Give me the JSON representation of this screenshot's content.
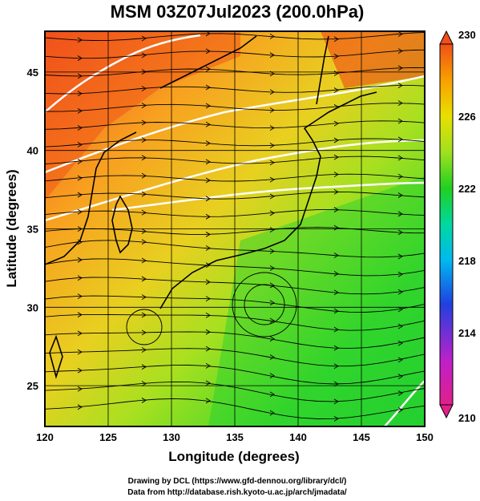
{
  "title": "MSM 03Z07Jul2023 (200.0hPa)",
  "map": {
    "xlabel": "Longitude (degrees)",
    "ylabel": "Latitude  (degrees)",
    "lon_range": [
      120,
      150
    ],
    "lat_range": [
      22.4,
      47.6
    ],
    "lon_ticks": [
      "120",
      "125",
      "130",
      "135",
      "140",
      "145",
      "150"
    ],
    "lat_ticks": [
      "25",
      "30",
      "35",
      "40",
      "45"
    ],
    "field": "temperature (shaded) with streamlines and white contours",
    "shading_summary": "warm (orange/red) in the northwest, cooler (green) in the southeast"
  },
  "colorbar": {
    "min": 210,
    "max": 230,
    "labels": [
      "230",
      "226",
      "222",
      "218",
      "214",
      "210"
    ],
    "colors": [
      "#e0208a",
      "#c020c8",
      "#2040e0",
      "#00b8f0",
      "#00d8a0",
      "#20d020",
      "#a0e020",
      "#e8e000",
      "#f8a000",
      "#f05018"
    ]
  },
  "credits": {
    "line1": "Drawing by DCL (https://www.gfd-dennou.org/library/dcl/)",
    "line2": "Data from http://database.rish.kyoto-u.ac.jp/arch/jmadata/"
  }
}
